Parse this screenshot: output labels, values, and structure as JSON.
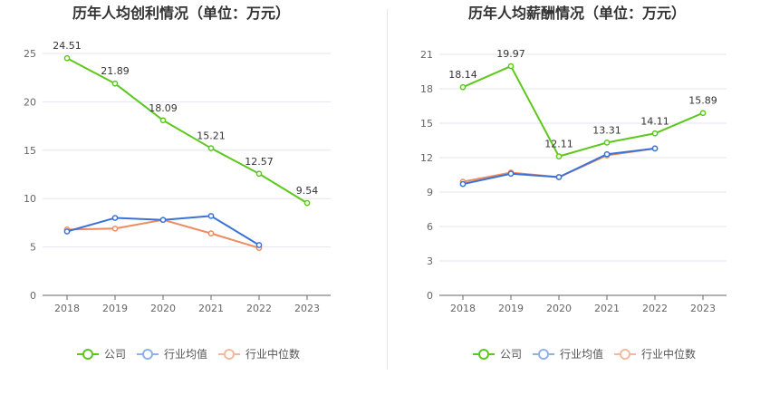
{
  "legend": [
    "公司",
    "行业均值",
    "行业中位数"
  ],
  "colors": {
    "company": "#5cc81e",
    "avg": "#3a72d8",
    "median": "#f08a5d",
    "legend_avg": "#8fb0ee",
    "legend_median": "#f6b89c"
  },
  "chart_data": [
    {
      "type": "line",
      "title": "历年人均创利情况（单位：万元）",
      "categories": [
        "2018",
        "2019",
        "2020",
        "2021",
        "2022",
        "2023"
      ],
      "ylim": [
        0,
        25
      ],
      "yticks": [
        0,
        5,
        10,
        15,
        20,
        25
      ],
      "grid": true,
      "legend_position": "bottom",
      "series": [
        {
          "name": "公司",
          "values": [
            24.51,
            21.89,
            18.09,
            15.21,
            12.57,
            9.54
          ],
          "labels": [
            "24.51",
            "21.89",
            "18.09",
            "15.21",
            "12.57",
            "9.54"
          ]
        },
        {
          "name": "行业均值",
          "values": [
            6.6,
            8.0,
            7.8,
            8.2,
            5.2,
            null
          ]
        },
        {
          "name": "行业中位数",
          "values": [
            6.8,
            6.9,
            7.8,
            6.4,
            4.9,
            null
          ]
        }
      ]
    },
    {
      "type": "line",
      "title": "历年人均薪酬情况（单位：万元）",
      "categories": [
        "2018",
        "2019",
        "2020",
        "2021",
        "2022",
        "2023"
      ],
      "ylim": [
        0,
        21
      ],
      "yticks": [
        0,
        3,
        6,
        9,
        12,
        15,
        18,
        21
      ],
      "grid": true,
      "legend_position": "bottom",
      "series": [
        {
          "name": "公司",
          "values": [
            18.14,
            19.97,
            12.11,
            13.31,
            14.11,
            15.89
          ],
          "labels": [
            "18.14",
            "19.97",
            "12.11",
            "13.31",
            "14.11",
            "15.89"
          ]
        },
        {
          "name": "行业均值",
          "values": [
            9.7,
            10.6,
            10.3,
            12.3,
            12.8,
            null
          ]
        },
        {
          "name": "行业中位数",
          "values": [
            9.9,
            10.7,
            10.3,
            12.2,
            12.8,
            null
          ]
        }
      ]
    }
  ]
}
